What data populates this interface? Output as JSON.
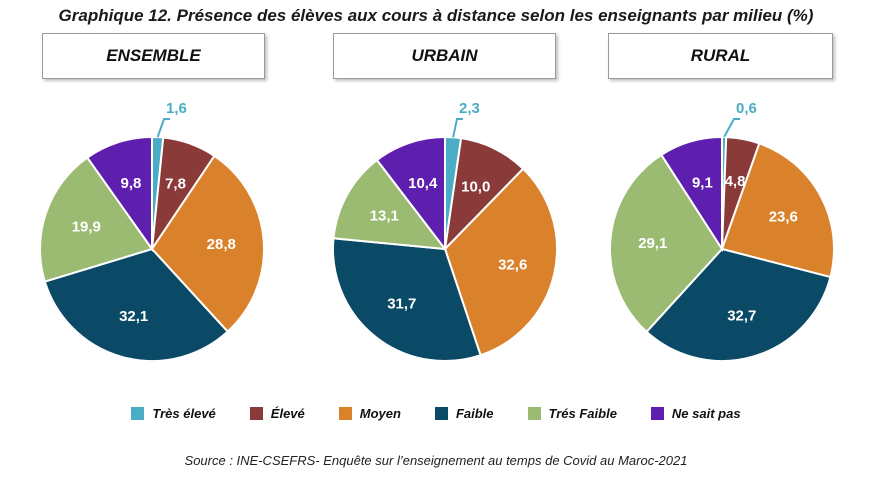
{
  "title": "Graphique 12. Présence des élèves aux cours à distance selon les enseignants par milieu (%)",
  "source": "Source : INE-CSEFRS- Enquête sur l’enseignement au temps de Covid au Maroc-2021",
  "legend": [
    {
      "label": "Très élevé",
      "color": "#4BACC6"
    },
    {
      "label": "Élevé",
      "color": "#8B3A3A"
    },
    {
      "label": "Moyen",
      "color": "#D9822B"
    },
    {
      "label": "Faible",
      "color": "#0B4A66"
    },
    {
      "label": "Trés Faible",
      "color": "#9BBB73"
    },
    {
      "label": "Ne sait pas",
      "color": "#5E1FAF"
    }
  ],
  "chart_data": [
    {
      "type": "pie",
      "title": "ENSEMBLE",
      "categories": [
        "Très élevé",
        "Élevé",
        "Moyen",
        "Faible",
        "Trés Faible",
        "Ne sait pas"
      ],
      "values": [
        1.6,
        7.8,
        28.8,
        32.1,
        19.9,
        9.8
      ],
      "labels": [
        "1,6",
        "7,8",
        "28,8",
        "32,1",
        "19,9",
        "9,8"
      ]
    },
    {
      "type": "pie",
      "title": "URBAIN",
      "categories": [
        "Très élevé",
        "Élevé",
        "Moyen",
        "Faible",
        "Trés Faible",
        "Ne sait pas"
      ],
      "values": [
        2.3,
        10.0,
        32.6,
        31.7,
        13.1,
        10.4
      ],
      "labels": [
        "2,3",
        "10,0",
        "32,6",
        "31,7",
        "13,1",
        "10,4"
      ]
    },
    {
      "type": "pie",
      "title": "RURAL",
      "categories": [
        "Très élevé",
        "Élevé",
        "Moyen",
        "Faible",
        "Trés Faible",
        "Ne sait pas"
      ],
      "values": [
        0.6,
        4.8,
        23.6,
        32.7,
        29.1,
        9.1
      ],
      "labels": [
        "0,6",
        "4,8",
        "23,6",
        "32,7",
        "29,1",
        "9,1"
      ]
    }
  ]
}
